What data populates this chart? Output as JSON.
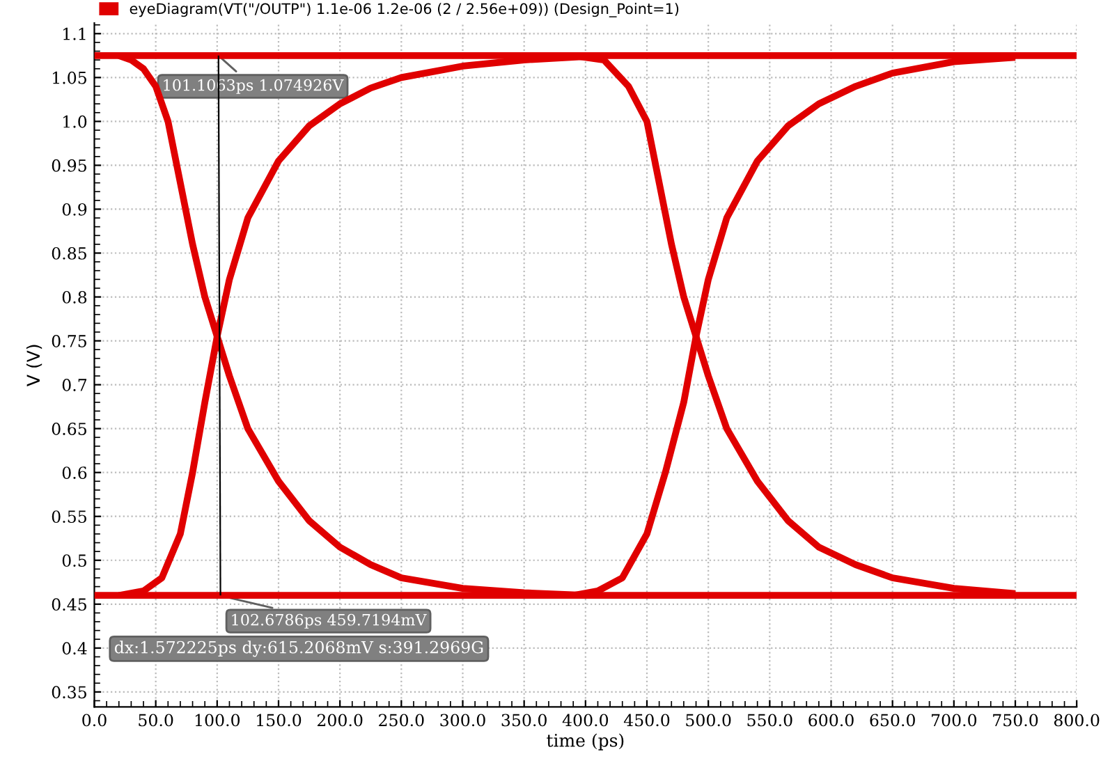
{
  "chart_data": {
    "type": "line",
    "xlabel": "time (ps)",
    "ylabel": "V (V)",
    "legend": "top left",
    "grid": true,
    "marker": "none",
    "line_style": "solid",
    "xlim": [
      0,
      800
    ],
    "ylim": [
      0.333,
      1.112
    ],
    "xticks": [
      {
        "value": 0,
        "label": "0.0"
      },
      {
        "value": 50,
        "label": "50.0"
      },
      {
        "value": 100,
        "label": "100.0"
      },
      {
        "value": 150,
        "label": "150.0"
      },
      {
        "value": 200,
        "label": "200.0"
      },
      {
        "value": 250,
        "label": "250.0"
      },
      {
        "value": 300,
        "label": "300.0"
      },
      {
        "value": 350,
        "label": "350.0"
      },
      {
        "value": 400,
        "label": "400.0"
      },
      {
        "value": 450,
        "label": "450.0"
      },
      {
        "value": 500,
        "label": "500.0"
      },
      {
        "value": 550,
        "label": "550.0"
      },
      {
        "value": 600,
        "label": "600.0"
      },
      {
        "value": 650,
        "label": "650.0"
      },
      {
        "value": 700,
        "label": "700.0"
      },
      {
        "value": 750,
        "label": "750.0"
      },
      {
        "value": 800,
        "label": "800.0"
      }
    ],
    "yticks": [
      0.35,
      0.4,
      0.45,
      0.5,
      0.55,
      0.6,
      0.65,
      0.7,
      0.75,
      0.8,
      0.85,
      0.9,
      0.95,
      {
        "value": 1.0,
        "label": "1.0"
      },
      1.05,
      1.1
    ],
    "series": [
      {
        "name": "eyeDiagram(VT(\"/OUTP\") 1.1e-06 1.2e-06 (2 / 2.56e+09)) (Design_Point=1)",
        "color": "#e00000",
        "x": [
          0,
          800
        ],
        "values": [
          1.075,
          1.075
        ]
      },
      {
        "color": "#e00000",
        "x": [
          0,
          800
        ],
        "values": [
          0.46,
          0.46
        ]
      },
      {
        "color": "#000000",
        "x": [
          101.1,
          102.7
        ],
        "values": [
          1.075,
          0.46
        ]
      },
      {
        "color": "#e00000",
        "x": [
          20,
          30,
          40,
          50,
          60,
          70,
          80,
          90,
          100,
          110,
          125,
          150,
          175,
          200,
          225,
          250,
          300,
          350,
          400
        ],
        "values": [
          1.075,
          1.07,
          1.06,
          1.04,
          1.0,
          0.93,
          0.86,
          0.8,
          0.755,
          0.71,
          0.65,
          0.59,
          0.545,
          0.515,
          0.495,
          0.48,
          0.468,
          0.463,
          0.46
        ]
      },
      {
        "color": "#e00000",
        "x": [
          20,
          40,
          55,
          70,
          80,
          90,
          100,
          110,
          125,
          150,
          175,
          200,
          225,
          250,
          300,
          350,
          400
        ],
        "values": [
          0.46,
          0.465,
          0.48,
          0.53,
          0.6,
          0.68,
          0.755,
          0.82,
          0.89,
          0.955,
          0.995,
          1.02,
          1.038,
          1.05,
          1.063,
          1.07,
          1.074
        ]
      },
      {
        "color": "#e00000",
        "x": [
          390,
          410,
          430,
          450,
          465,
          480,
          490,
          500,
          515,
          540,
          565,
          590,
          620,
          650,
          700,
          750
        ],
        "values": [
          0.46,
          0.465,
          0.48,
          0.53,
          0.6,
          0.68,
          0.755,
          0.82,
          0.89,
          0.955,
          0.995,
          1.02,
          1.04,
          1.055,
          1.068,
          1.073
        ]
      },
      {
        "color": "#e00000",
        "x": [
          390,
          415,
          435,
          450,
          460,
          470,
          480,
          490,
          500,
          515,
          540,
          565,
          590,
          620,
          650,
          700,
          750
        ],
        "values": [
          1.075,
          1.07,
          1.04,
          1.0,
          0.93,
          0.86,
          0.8,
          0.755,
          0.71,
          0.65,
          0.59,
          0.545,
          0.515,
          0.495,
          0.48,
          0.468,
          0.462
        ]
      }
    ],
    "annotations": [
      {
        "text": "101.1063ps 1.074926V",
        "x": 101.1063,
        "y": 1.074926
      },
      {
        "text": "102.6786ps 459.7194mV",
        "x": 102.6786,
        "y": 0.4597194
      },
      "dx:1.572225ps dy:615.2068mV s:391.2969G"
    ]
  }
}
